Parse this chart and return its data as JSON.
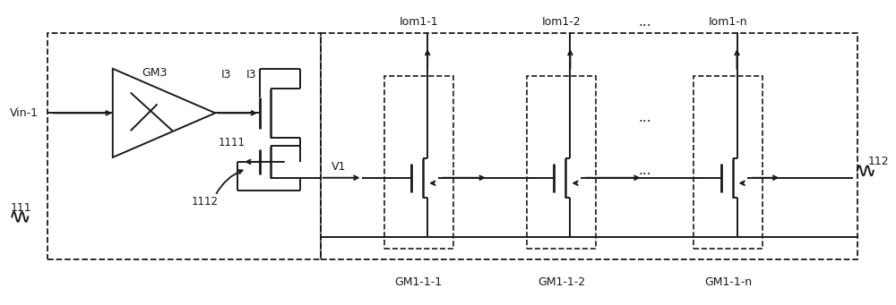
{
  "bg_color": "#ffffff",
  "line_color": "#1a1a1a",
  "fig_width": 10.0,
  "fig_height": 3.41,
  "labels": {
    "Vin1": "Vin-1",
    "GM3": "GM3",
    "I3": "I3",
    "label1111": "1111",
    "label1112": "1112",
    "label111": "111",
    "V1": "V1",
    "Iom11": "Iom1-1",
    "Iom12": "Iom1-2",
    "Iom1n": "Iom1-n",
    "dots_top": "...",
    "dots_mid": "...",
    "GM111": "GM1-1-1",
    "GM112": "GM1-1-2",
    "GM11n": "GM1-1-n",
    "label112": "112"
  }
}
